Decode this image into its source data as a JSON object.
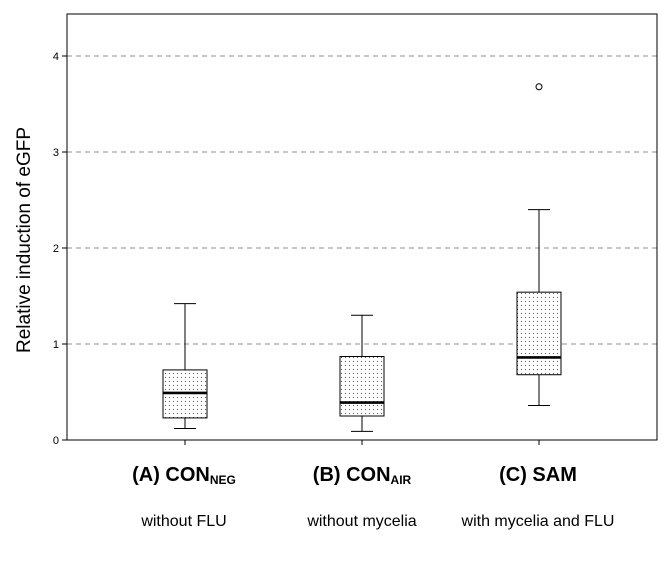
{
  "chart_data": {
    "type": "box",
    "ylabel": "Relative induction of eGFP",
    "ylim": [
      0,
      4.4
    ],
    "yticks": [
      0,
      1,
      2,
      3,
      4
    ],
    "grid": "horizontal dashed",
    "categories": [
      {
        "prefix": "(A) CON",
        "subscript": "NEG",
        "description": "without FLU"
      },
      {
        "prefix": "(B) CON",
        "subscript": "AIR",
        "description": "without mycelia"
      },
      {
        "prefix": "(C) SAM",
        "subscript": "",
        "description": "with mycelia and FLU"
      }
    ],
    "boxes": [
      {
        "min": 0.12,
        "q1": 0.23,
        "median": 0.49,
        "q3": 0.73,
        "max": 1.42,
        "outliers": []
      },
      {
        "min": 0.09,
        "q1": 0.25,
        "median": 0.39,
        "q3": 0.87,
        "max": 1.3,
        "outliers": []
      },
      {
        "min": 0.36,
        "q1": 0.68,
        "median": 0.86,
        "q3": 1.54,
        "max": 2.4,
        "outliers": [
          3.68
        ]
      }
    ]
  }
}
